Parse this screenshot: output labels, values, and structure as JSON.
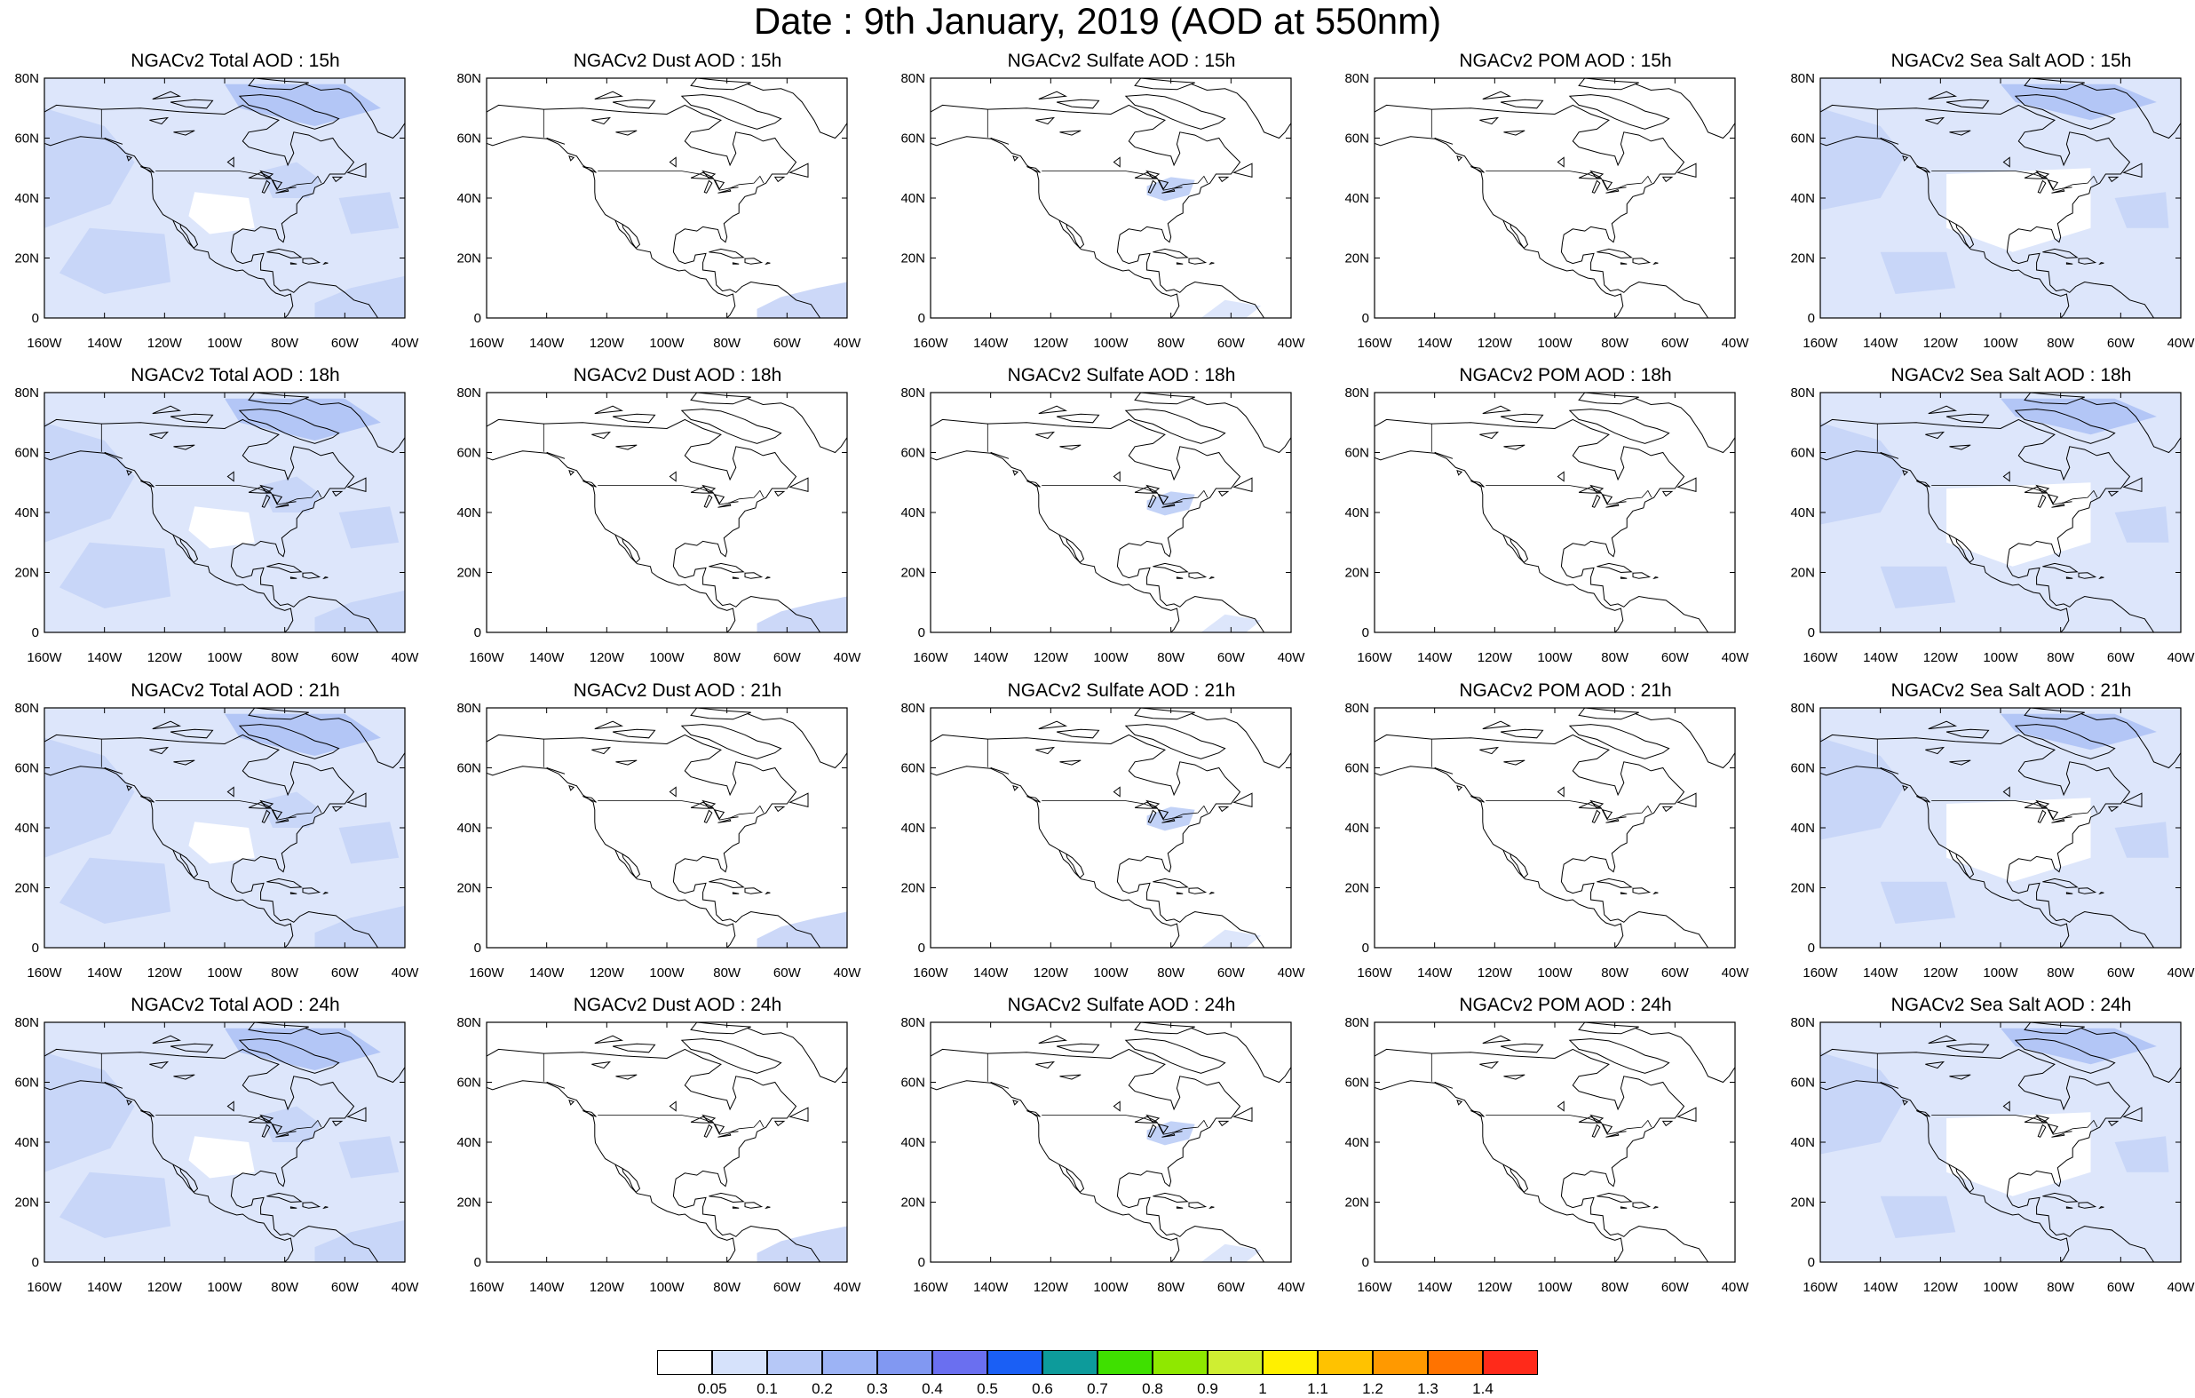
{
  "title": "Date : 9th January, 2019 (AOD at 550nm)",
  "panel_titles": [
    [
      "NGACv2 Total AOD : 15h",
      "NGACv2 Dust AOD : 15h",
      "NGACv2 Sulfate AOD : 15h",
      "NGACv2 POM AOD : 15h",
      "NGACv2 Sea Salt AOD : 15h"
    ],
    [
      "NGACv2 Total AOD : 18h",
      "NGACv2 Dust AOD : 18h",
      "NGACv2 Sulfate AOD : 18h",
      "NGACv2 POM AOD : 18h",
      "NGACv2 Sea Salt AOD : 18h"
    ],
    [
      "NGACv2 Total AOD : 21h",
      "NGACv2 Dust AOD : 21h",
      "NGACv2 Sulfate AOD : 21h",
      "NGACv2 POM AOD : 21h",
      "NGACv2 Sea Salt AOD : 21h"
    ],
    [
      "NGACv2 Total AOD : 24h",
      "NGACv2 Dust AOD : 24h",
      "NGACv2 Sulfate AOD : 24h",
      "NGACv2 POM AOD : 24h",
      "NGACv2 Sea Salt  AOD : 24h"
    ]
  ],
  "lat_ticks": [
    "80N",
    "60N",
    "40N",
    "20N",
    "0"
  ],
  "lon_ticks": [
    "160W",
    "140W",
    "120W",
    "100W",
    "80W",
    "60W",
    "40W"
  ],
  "colorbar": {
    "labels": [
      "0.05",
      "0.1",
      "0.2",
      "0.3",
      "0.4",
      "0.5",
      "0.6",
      "0.7",
      "0.8",
      "0.9",
      "1",
      "1.1",
      "1.2",
      "1.3",
      "1.4"
    ],
    "colors": [
      "#ffffff",
      "#d6e2fb",
      "#b6c8f7",
      "#9cb3f5",
      "#8198f2",
      "#6a6ff0",
      "#1a5ff5",
      "#0d9b9b",
      "#3fe000",
      "#8fe800",
      "#cfee32",
      "#fff000",
      "#ffc200",
      "#ff9900",
      "#ff7300",
      "#ff2a1a"
    ]
  },
  "shading": {
    "total": "#c8d6f8",
    "dust": "#ccd8f8",
    "sulfate": "#c2d2f7",
    "pom": "#ffffff",
    "seasalt": "#c8d6f8"
  }
}
